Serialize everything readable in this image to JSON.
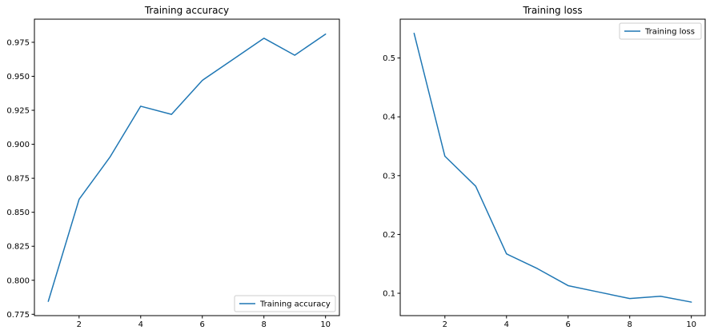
{
  "chart_data": [
    {
      "type": "line",
      "title": "Training accuracy",
      "xlabel": "",
      "ylabel": "",
      "xlim": [
        0.55,
        10.45
      ],
      "ylim": [
        0.774,
        0.992
      ],
      "xticks": [
        2,
        4,
        6,
        8,
        10
      ],
      "xtick_labels": [
        "2",
        "4",
        "6",
        "8",
        "10"
      ],
      "yticks": [
        0.775,
        0.8,
        0.825,
        0.85,
        0.875,
        0.9,
        0.925,
        0.95,
        0.975
      ],
      "ytick_labels": [
        "0.775",
        "0.800",
        "0.825",
        "0.850",
        "0.875",
        "0.900",
        "0.925",
        "0.950",
        "0.975"
      ],
      "grid": false,
      "legend_position": "bottom-right",
      "series": [
        {
          "name": "Training accuracy",
          "color": "#1f77b4",
          "x": [
            1,
            2,
            3,
            4,
            5,
            6,
            7,
            8,
            9,
            10
          ],
          "y": [
            0.7845,
            0.8595,
            0.8905,
            0.928,
            0.922,
            0.947,
            0.9625,
            0.978,
            0.9655,
            0.981
          ]
        }
      ]
    },
    {
      "type": "line",
      "title": "Training loss",
      "xlabel": "",
      "ylabel": "",
      "xlim": [
        0.55,
        10.45
      ],
      "ylim": [
        0.062,
        0.566
      ],
      "xticks": [
        2,
        4,
        6,
        8,
        10
      ],
      "xtick_labels": [
        "2",
        "4",
        "6",
        "8",
        "10"
      ],
      "yticks": [
        0.1,
        0.2,
        0.3,
        0.4,
        0.5
      ],
      "ytick_labels": [
        "0.1",
        "0.2",
        "0.3",
        "0.4",
        "0.5"
      ],
      "grid": false,
      "legend_position": "top-right",
      "series": [
        {
          "name": "Training loss",
          "color": "#1f77b4",
          "x": [
            1,
            2,
            3,
            4,
            5,
            6,
            7,
            8,
            9,
            10
          ],
          "y": [
            0.542,
            0.333,
            0.282,
            0.167,
            0.142,
            0.113,
            0.102,
            0.091,
            0.095,
            0.085
          ]
        }
      ]
    }
  ]
}
